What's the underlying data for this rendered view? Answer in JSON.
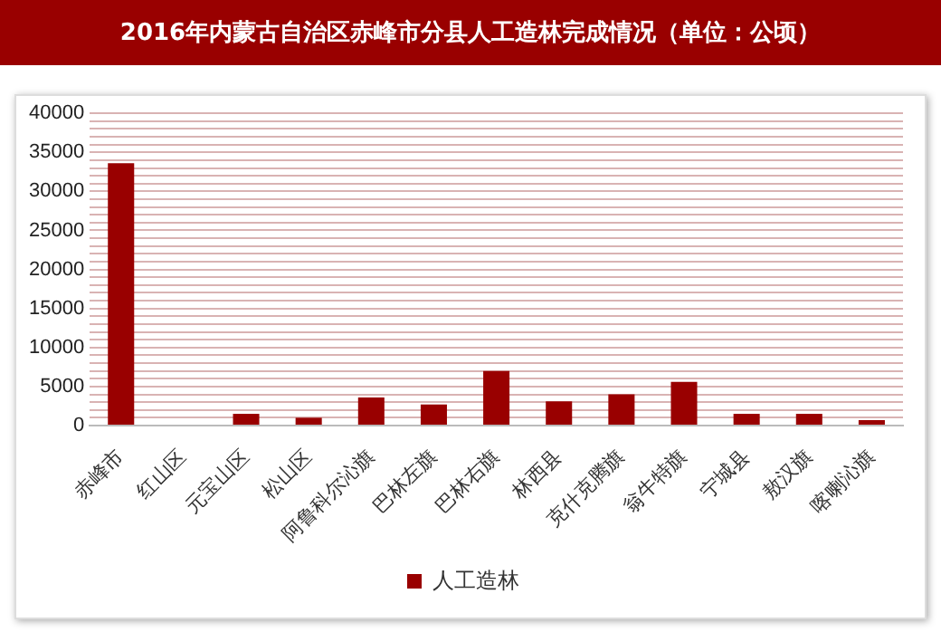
{
  "chart_data": {
    "type": "bar",
    "title": "2016年内蒙古自治区赤峰市分县人工造林完成情况（单位：公顷）",
    "categories": [
      "赤峰市",
      "红山区",
      "元宝山区",
      "松山区",
      "阿鲁科尔沁旗",
      "巴林左旗",
      "巴林右旗",
      "林西县",
      "克什克腾旗",
      "翁牛特旗",
      "宁城县",
      "敖汉旗",
      "喀喇沁旗"
    ],
    "series": [
      {
        "name": "人工造林",
        "color": "#990000",
        "values": [
          33600,
          0,
          1500,
          1000,
          3600,
          2700,
          7000,
          3100,
          4000,
          5600,
          1500,
          1500,
          700
        ]
      }
    ],
    "ylim": [
      0,
      40000
    ],
    "yticks": [
      0,
      {
        "value": 1000,
        "label": null
      },
      {
        "value": 2000,
        "label": null
      },
      {
        "value": 3000,
        "label": null
      },
      {
        "value": 4000,
        "label": null
      },
      5000,
      {
        "value": 6000,
        "label": null
      },
      {
        "value": 7000,
        "label": null
      },
      {
        "value": 8000,
        "label": null
      },
      {
        "value": 9000,
        "label": null
      },
      10000,
      {
        "value": 11000,
        "label": null
      },
      {
        "value": 12000,
        "label": null
      },
      {
        "value": 13000,
        "label": null
      },
      {
        "value": 14000,
        "label": null
      },
      15000,
      {
        "value": 16000,
        "label": null
      },
      {
        "value": 17000,
        "label": null
      },
      {
        "value": 18000,
        "label": null
      },
      {
        "value": 19000,
        "label": null
      },
      20000,
      {
        "value": 21000,
        "label": null
      },
      {
        "value": 22000,
        "label": null
      },
      {
        "value": 23000,
        "label": null
      },
      {
        "value": 24000,
        "label": null
      },
      25000,
      {
        "value": 26000,
        "label": null
      },
      {
        "value": 27000,
        "label": null
      },
      {
        "value": 28000,
        "label": null
      },
      {
        "value": 29000,
        "label": null
      },
      30000,
      {
        "value": 31000,
        "label": null
      },
      {
        "value": 32000,
        "label": null
      },
      {
        "value": 33000,
        "label": null
      },
      {
        "value": 34000,
        "label": null
      },
      35000,
      {
        "value": 36000,
        "label": null
      },
      {
        "value": 37000,
        "label": null
      },
      {
        "value": 38000,
        "label": null
      },
      {
        "value": 39000,
        "label": null
      },
      40000
    ],
    "grid": "y",
    "legend": "bottom"
  }
}
